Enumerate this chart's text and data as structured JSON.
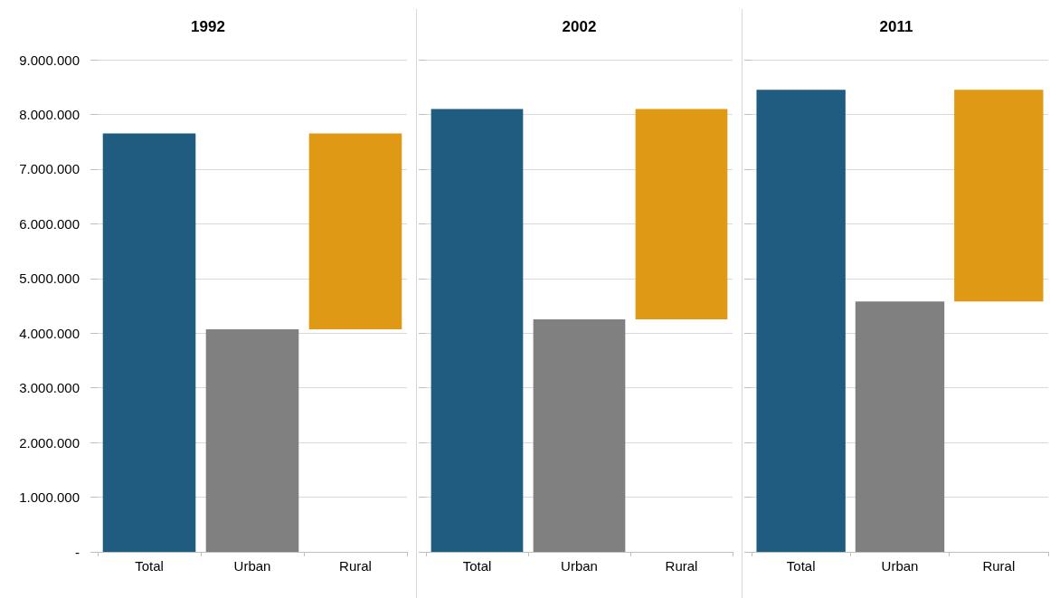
{
  "chart_data": [
    {
      "type": "bar",
      "title": "1992",
      "categories": [
        "Total",
        "Urban",
        "Rural"
      ],
      "values": [
        7650000,
        4070000,
        3580000
      ],
      "base": [
        0,
        0,
        4070000
      ],
      "colors": [
        "#1f5c80",
        "#808080",
        "#e09915"
      ],
      "ylim": [
        0,
        9000000
      ],
      "yticks": [
        {
          "value": 0,
          "label": "-"
        },
        {
          "value": 1000000,
          "label": "1.000.000"
        },
        {
          "value": 2000000,
          "label": "2.000.000"
        },
        {
          "value": 3000000,
          "label": "3.000.000"
        },
        {
          "value": 4000000,
          "label": "4.000.000"
        },
        {
          "value": 5000000,
          "label": "5.000.000"
        },
        {
          "value": 6000000,
          "label": "6.000.000"
        },
        {
          "value": 7000000,
          "label": "7.000.000"
        },
        {
          "value": 8000000,
          "label": "8.000.000"
        },
        {
          "value": 9000000,
          "label": "9.000.000"
        }
      ],
      "grid": "y"
    },
    {
      "type": "bar",
      "title": "2002",
      "categories": [
        "Total",
        "Urban",
        "Rural"
      ],
      "values": [
        8100000,
        4250000,
        3850000
      ],
      "base": [
        0,
        0,
        4250000
      ],
      "colors": [
        "#1f5c80",
        "#808080",
        "#e09915"
      ],
      "ylim": [
        0,
        9000000
      ],
      "yticks": [
        {
          "value": 0,
          "label": null
        },
        {
          "value": 1000000,
          "label": null
        },
        {
          "value": 2000000,
          "label": null
        },
        {
          "value": 3000000,
          "label": null
        },
        {
          "value": 4000000,
          "label": null
        },
        {
          "value": 5000000,
          "label": null
        },
        {
          "value": 6000000,
          "label": null
        },
        {
          "value": 7000000,
          "label": null
        },
        {
          "value": 8000000,
          "label": null
        },
        {
          "value": 9000000,
          "label": null
        }
      ],
      "grid": "y",
      "tick_labels": "x"
    },
    {
      "type": "bar",
      "title": "2011",
      "categories": [
        "Total",
        "Urban",
        "Rural"
      ],
      "values": [
        8450000,
        4580000,
        3870000
      ],
      "base": [
        0,
        0,
        4580000
      ],
      "colors": [
        "#1f5c80",
        "#808080",
        "#e09915"
      ],
      "ylim": [
        0,
        9000000
      ],
      "yticks": [
        {
          "value": 0,
          "label": null
        },
        {
          "value": 1000000,
          "label": null
        },
        {
          "value": 2000000,
          "label": null
        },
        {
          "value": 3000000,
          "label": null
        },
        {
          "value": 4000000,
          "label": null
        },
        {
          "value": 5000000,
          "label": null
        },
        {
          "value": 6000000,
          "label": null
        },
        {
          "value": 7000000,
          "label": null
        },
        {
          "value": 8000000,
          "label": null
        },
        {
          "value": 9000000,
          "label": null
        }
      ],
      "grid": "y",
      "tick_labels": "x"
    }
  ]
}
